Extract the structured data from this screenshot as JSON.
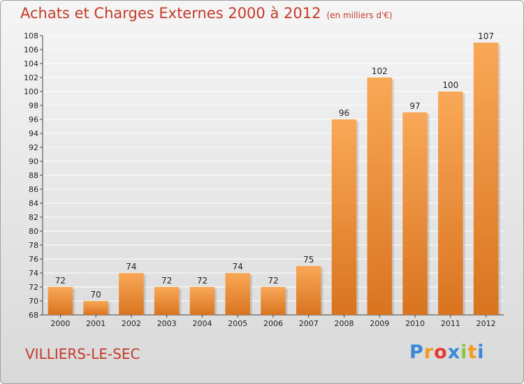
{
  "title": "Achats et Charges Externes 2000 à 2012",
  "unit_label": "(en milliers d'€)",
  "commune": "VILLIERS-LE-SEC",
  "logo": {
    "letters": [
      {
        "char": "P",
        "color": "#3a87d9"
      },
      {
        "char": "r",
        "color": "#f39a1e"
      },
      {
        "char": "o",
        "color": "#e53935"
      },
      {
        "char": "x",
        "color": "#3a87d9"
      },
      {
        "char": "i",
        "color": "#8cc63f"
      },
      {
        "char": "t",
        "color": "#f39a1e"
      },
      {
        "char": "i",
        "color": "#3a87d9"
      }
    ]
  },
  "colors": {
    "title": "#c43a2a",
    "bar_light": "#f9a857",
    "bar_dark": "#d97420",
    "grid": "#ffffff"
  },
  "chart_data": {
    "type": "bar",
    "title": "Achats et Charges Externes 2000 à 2012",
    "subtitle": "(en milliers d'€)",
    "xlabel": "",
    "ylabel": "",
    "categories": [
      "2000",
      "2001",
      "2002",
      "2003",
      "2004",
      "2005",
      "2006",
      "2007",
      "2008",
      "2009",
      "2010",
      "2011",
      "2012"
    ],
    "values": [
      72,
      70,
      74,
      72,
      72,
      74,
      72,
      75,
      96,
      102,
      97,
      100,
      107
    ],
    "ylim": [
      68,
      108
    ],
    "ytick_step": 2,
    "grid": true,
    "data_labels": true
  }
}
